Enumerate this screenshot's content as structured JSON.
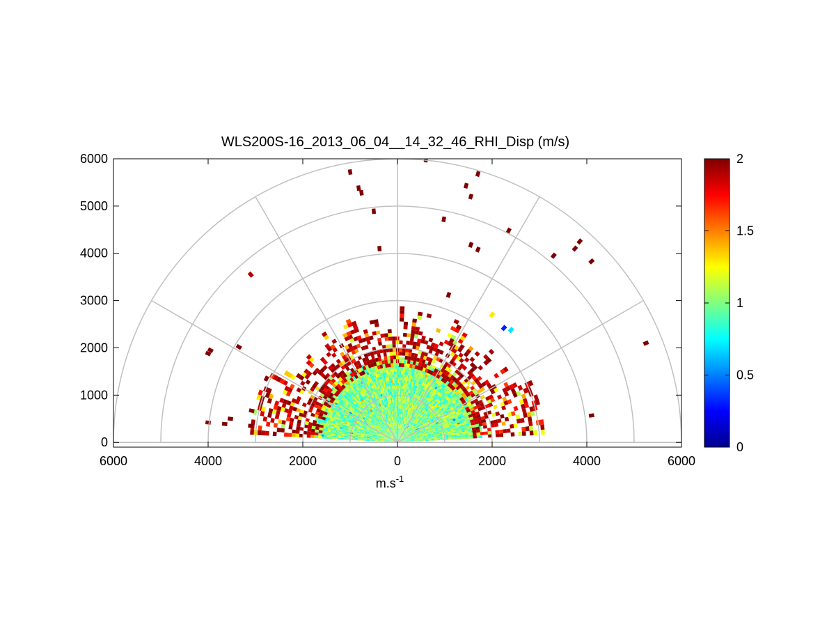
{
  "chart_data": {
    "type": "heatmap",
    "subtype": "polar-rhi-half-disc",
    "title": "WLS200S-16_2013_06_04__14_32_46_RHI_Disp (m/s)",
    "xlabel_base": "m.s",
    "xlabel_sup": "-1",
    "ylabel": "",
    "xlim": [
      -6000,
      6000
    ],
    "ylim": [
      -100,
      6000
    ],
    "x_ticks": [
      -6000,
      -4000,
      -2000,
      0,
      2000,
      4000,
      6000
    ],
    "x_tick_labels": [
      "6000",
      "4000",
      "2000",
      "0",
      "2000",
      "4000",
      "6000"
    ],
    "y_ticks": [
      0,
      1000,
      2000,
      3000,
      4000,
      5000,
      6000
    ],
    "y_tick_labels": [
      "0",
      "1000",
      "2000",
      "3000",
      "4000",
      "5000",
      "6000"
    ],
    "polar_grid": {
      "radii": [
        1000,
        2000,
        3000,
        4000,
        5000,
        6000
      ],
      "spoke_angles_deg": [
        0,
        30,
        60,
        90,
        120,
        150,
        180
      ]
    },
    "colorbar": {
      "colormap": "jet",
      "min": 0,
      "max": 2,
      "ticks": [
        0,
        0.5,
        1,
        1.5,
        2
      ],
      "tick_labels": [
        "0",
        "0.5",
        "1",
        "1.5",
        "2"
      ]
    },
    "data_description": "Dense region of values near 1 m/s within ~2000 m range, ring of high values (~2 m/s) at 1800-2800 m range, sparse scattered high-value cells at larger range",
    "data_summary": {
      "core_range_m": [
        0,
        1800
      ],
      "core_value": 1.0,
      "edge_range_m": [
        1800,
        2800
      ],
      "edge_value": 2.0,
      "sparse_far_cells": [
        {
          "x": 2350,
          "y": 4480,
          "v": 2.0
        },
        {
          "x": 600,
          "y": 5980,
          "v": 2.0
        },
        {
          "x": -1000,
          "y": 5720,
          "v": 2.0
        },
        {
          "x": -820,
          "y": 5380,
          "v": 2.0
        },
        {
          "x": -760,
          "y": 5280,
          "v": 2.0
        },
        {
          "x": -500,
          "y": 4890,
          "v": 2.0
        },
        {
          "x": -380,
          "y": 4100,
          "v": 2.0
        },
        {
          "x": -3100,
          "y": 3550,
          "v": 1.9
        },
        {
          "x": -3350,
          "y": 2020,
          "v": 2.0
        },
        {
          "x": -3950,
          "y": 1950,
          "v": 2.0
        },
        {
          "x": -4000,
          "y": 1880,
          "v": 2.0
        },
        {
          "x": -4000,
          "y": 420,
          "v": 2.0
        },
        {
          "x": -3650,
          "y": 390,
          "v": 2.0
        },
        {
          "x": -3530,
          "y": 500,
          "v": 2.0
        },
        {
          "x": -3100,
          "y": 350,
          "v": 2.0
        },
        {
          "x": -3080,
          "y": 670,
          "v": 2.0
        },
        {
          "x": 1450,
          "y": 5430,
          "v": 2.0
        },
        {
          "x": 1550,
          "y": 5200,
          "v": 2.0
        },
        {
          "x": 1700,
          "y": 5680,
          "v": 2.0
        },
        {
          "x": 980,
          "y": 4720,
          "v": 2.0
        },
        {
          "x": 1080,
          "y": 3120,
          "v": 2.0
        },
        {
          "x": 1550,
          "y": 4180,
          "v": 2.0
        },
        {
          "x": 1700,
          "y": 4080,
          "v": 2.0
        },
        {
          "x": 3300,
          "y": 3950,
          "v": 2.0
        },
        {
          "x": 3750,
          "y": 4100,
          "v": 2.0
        },
        {
          "x": 3850,
          "y": 4250,
          "v": 2.0
        },
        {
          "x": 4100,
          "y": 3830,
          "v": 2.0
        },
        {
          "x": 5250,
          "y": 2100,
          "v": 2.0
        },
        {
          "x": 4100,
          "y": 570,
          "v": 2.0
        },
        {
          "x": 2000,
          "y": 2700,
          "v": 1.3
        },
        {
          "x": 2250,
          "y": 2420,
          "v": 0.3
        },
        {
          "x": 2400,
          "y": 2380,
          "v": 0.7
        }
      ]
    }
  }
}
